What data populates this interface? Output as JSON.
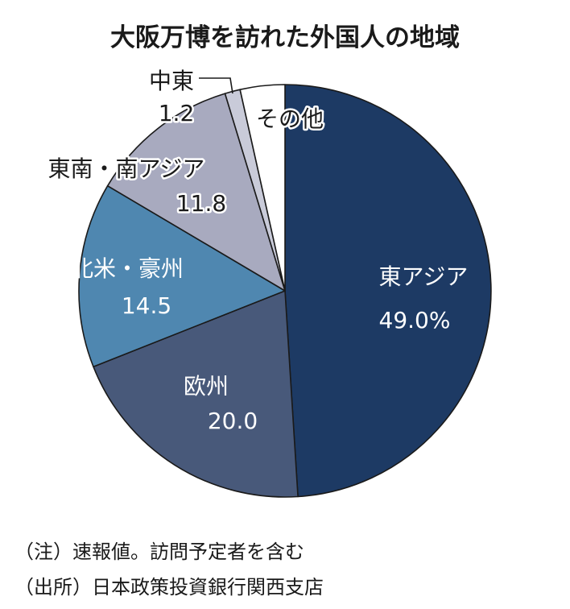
{
  "chart_data": {
    "type": "pie",
    "title": "大阪万博を訪れた外国人の地域",
    "categories": [
      "東アジア",
      "欧州",
      "北米・豪州",
      "東南・南アジア",
      "中東",
      "その他"
    ],
    "values": [
      49.0,
      20.0,
      14.5,
      11.8,
      1.2,
      3.5
    ],
    "value_labels": [
      "49.0%",
      "20.0",
      "14.5",
      "11.8",
      "1.2",
      ""
    ],
    "colors": [
      "#1d3a64",
      "#48597a",
      "#4f87b0",
      "#a8aabf",
      "#c9cbd9",
      "#ffffff"
    ]
  },
  "notes": [
    "（注）速報値。訪問予定者を含む",
    "（出所）日本政策投資銀行関西支店"
  ]
}
